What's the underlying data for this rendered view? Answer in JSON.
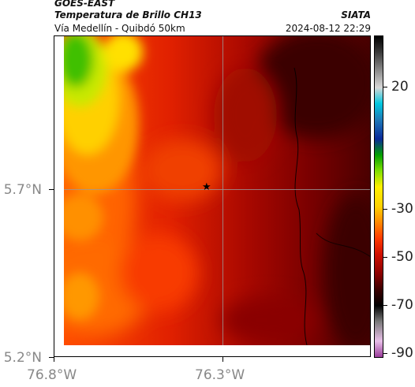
{
  "header": {
    "satellite": "GOES-EAST",
    "product": "Temperatura de Brillo CH13",
    "agency": "SIATA",
    "location": "Vía Medellín - Quibdó 50km",
    "timestamp": "2024-08-12 22:29"
  },
  "map": {
    "lat_axis": [
      {
        "label": "5.7°N",
        "value": 5.7
      },
      {
        "label": "5.2°N",
        "value": 5.2
      }
    ],
    "lon_axis": [
      {
        "label": "76.8°W",
        "value": -76.8
      },
      {
        "label": "76.3°W",
        "value": -76.3
      }
    ],
    "marker": "star",
    "grid": true
  },
  "colorbar": {
    "labels": [
      "20",
      "-30",
      "-50",
      "-70",
      "-90"
    ],
    "range": [
      -95,
      40
    ],
    "stops": [
      "#9a3c9a",
      "#e8c0e8",
      "#7a7a7a",
      "#000000",
      "#3a0000",
      "#8b0000",
      "#d01000",
      "#ff3a00",
      "#ff8a00",
      "#ffd200",
      "#fff000",
      "#80e000",
      "#00a000",
      "#0a2a9a",
      "#1e7ab8",
      "#00c8e0",
      "#d8d8d8",
      "#909090",
      "#3a3a3a",
      "#000000"
    ]
  }
}
